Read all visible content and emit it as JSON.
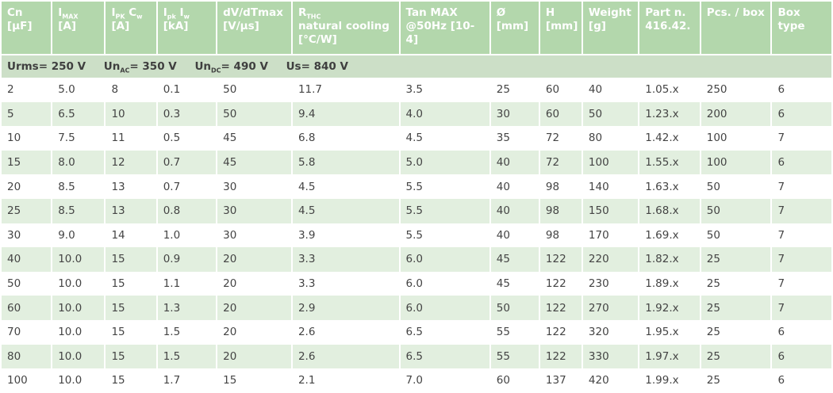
{
  "headers": [
    {
      "main": "Cn",
      "line2": "[µF]"
    },
    {
      "main": "I",
      "sub": "MAX",
      "line2": "[A]"
    },
    {
      "main": "I",
      "sub": "PK",
      "main2": " C",
      "sub2": "w",
      "line2": "[A]"
    },
    {
      "main": "I",
      "sub": "pk",
      "main2": " I",
      "sub2": "w",
      "line2": "[kA]"
    },
    {
      "main": "dV/dTmax",
      "line2": "[V/µs]"
    },
    {
      "main": "R",
      "sub": "THC",
      "line2": "natural cooling",
      "line3": "[°C/W]"
    },
    {
      "main": "Tan MAX",
      "line2": "@50Hz [10-4]"
    },
    {
      "main": "Ø",
      "line2": "[mm]"
    },
    {
      "main": "H",
      "line2": "[mm]"
    },
    {
      "main": "Weight",
      "line2": "[g]"
    },
    {
      "main": "Part n.",
      "line2": "416.42."
    },
    {
      "main": "Pcs. / box"
    },
    {
      "main": "Box type"
    }
  ],
  "conditions": {
    "urms": "Urms= 250  V",
    "unac_a": "Un",
    "unac_sub": "AC",
    "unac_b": "= 350 V",
    "undc_a": "Un",
    "undc_sub": "DC",
    "undc_b": "= 490  V",
    "us": "Us= 840 V"
  },
  "rows": [
    [
      "2",
      "5.0",
      "8",
      "0.1",
      "50",
      "11.7",
      "3.5",
      "25",
      "60",
      "40",
      "1.05.x",
      "250",
      "6"
    ],
    [
      "5",
      "6.5",
      "10",
      "0.3",
      "50",
      "9.4",
      "4.0",
      "30",
      "60",
      "50",
      "1.23.x",
      "200",
      "6"
    ],
    [
      "10",
      "7.5",
      "11",
      "0.5",
      "45",
      "6.8",
      "4.5",
      "35",
      "72",
      "80",
      "1.42.x",
      "100",
      "7"
    ],
    [
      "15",
      "8.0",
      "12",
      "0.7",
      "45",
      "5.8",
      "5.0",
      "40",
      "72",
      "100",
      "1.55.x",
      "100",
      "6"
    ],
    [
      "20",
      "8.5",
      "13",
      "0.7",
      "30",
      "4.5",
      "5.5",
      "40",
      "98",
      "140",
      "1.63.x",
      "50",
      "7"
    ],
    [
      "25",
      "8.5",
      "13",
      "0.8",
      "30",
      "4.5",
      "5.5",
      "40",
      "98",
      "150",
      "1.68.x",
      "50",
      "7"
    ],
    [
      "30",
      "9.0",
      "14",
      "1.0",
      "30",
      "3.9",
      "5.5",
      "40",
      "98",
      "170",
      "1.69.x",
      "50",
      "7"
    ],
    [
      "40",
      "10.0",
      "15",
      "0.9",
      "20",
      "3.3",
      "6.0",
      "45",
      "122",
      "220",
      "1.82.x",
      "25",
      "7"
    ],
    [
      "50",
      "10.0",
      "15",
      "1.1",
      "20",
      "3.3",
      "6.0",
      "45",
      "122",
      "230",
      "1.89.x",
      "25",
      "7"
    ],
    [
      "60",
      "10.0",
      "15",
      "1.3",
      "20",
      "2.9",
      "6.0",
      "50",
      "122",
      "270",
      "1.92.x",
      "25",
      "7"
    ],
    [
      "70",
      "10.0",
      "15",
      "1.5",
      "20",
      "2.6",
      "6.5",
      "55",
      "122",
      "320",
      "1.95.x",
      "25",
      "6"
    ],
    [
      "80",
      "10.0",
      "15",
      "1.5",
      "20",
      "2.6",
      "6.5",
      "55",
      "122",
      "330",
      "1.97.x",
      "25",
      "6"
    ],
    [
      "100",
      "10.0",
      "15",
      "1.7",
      "15",
      "2.1",
      "7.0",
      "60",
      "137",
      "420",
      "1.99.x",
      "25",
      "6"
    ]
  ]
}
